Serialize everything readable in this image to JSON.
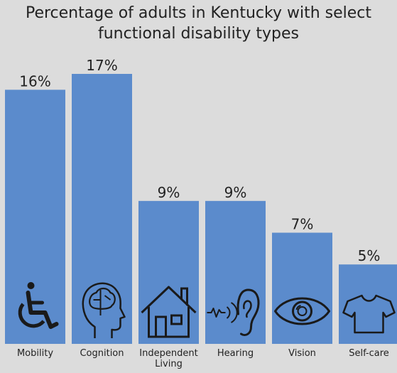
{
  "chart_data": {
    "type": "bar",
    "title_lines": [
      "Percentage of adults in Kentucky with select",
      "functional disability types"
    ],
    "categories": [
      "Mobility",
      "Cognition",
      "Independent Living",
      "Hearing",
      "Vision",
      "Self-care"
    ],
    "category_label_lines": [
      [
        "Mobility"
      ],
      [
        "Cognition"
      ],
      [
        "Independent",
        "Living"
      ],
      [
        "Hearing"
      ],
      [
        "Vision"
      ],
      [
        "Self-care"
      ]
    ],
    "values": [
      16,
      17,
      9,
      9,
      7,
      5
    ],
    "value_labels": [
      "16%",
      "17%",
      "9%",
      "9%",
      "7%",
      "5%"
    ],
    "icons": [
      "wheelchair-icon",
      "brain-head-icon",
      "house-icon",
      "ear-hearing-icon",
      "eye-icon",
      "shirt-icon"
    ],
    "ylim": [
      0,
      17
    ],
    "bar_color": "#5b8bcc",
    "grid": false,
    "legend": "none"
  }
}
